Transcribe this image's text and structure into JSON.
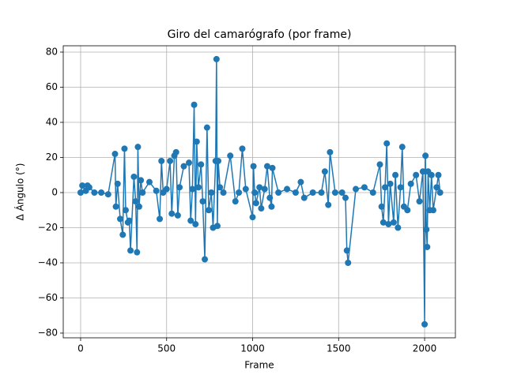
{
  "chart_data": {
    "type": "line",
    "title": "Giro del camarógrafo (por frame)",
    "x_label": "Frame",
    "y_label": "Δ Ángulo (°)",
    "color": "#1f77b4",
    "grid": true,
    "x": [
      0,
      10,
      30,
      40,
      50,
      80,
      120,
      160,
      200,
      205,
      215,
      230,
      245,
      255,
      262,
      275,
      283,
      290,
      310,
      320,
      328,
      333,
      340,
      350,
      360,
      400,
      440,
      460,
      470,
      480,
      500,
      520,
      530,
      545,
      555,
      565,
      575,
      600,
      630,
      640,
      650,
      660,
      668,
      675,
      685,
      700,
      710,
      722,
      735,
      745,
      760,
      770,
      785,
      790,
      795,
      800,
      810,
      830,
      870,
      900,
      920,
      940,
      960,
      1000,
      1005,
      1012,
      1020,
      1040,
      1050,
      1070,
      1085,
      1100,
      1110,
      1115,
      1150,
      1200,
      1250,
      1280,
      1300,
      1350,
      1400,
      1420,
      1440,
      1450,
      1480,
      1520,
      1540,
      1548,
      1555,
      1600,
      1650,
      1700,
      1740,
      1750,
      1760,
      1770,
      1780,
      1790,
      1800,
      1820,
      1830,
      1845,
      1860,
      1870,
      1880,
      1900,
      1920,
      1950,
      1970,
      1990,
      2000,
      2005,
      2010,
      2015,
      2020,
      2030,
      2040,
      2050,
      2070,
      2080,
      2090
    ],
    "values": [
      0,
      4,
      1,
      4,
      3,
      0,
      0,
      -1,
      22,
      -8,
      5,
      -15,
      -24,
      25,
      -10,
      -17,
      -16,
      -33,
      9,
      -5,
      -34,
      26,
      -8,
      7,
      0,
      6,
      1,
      -15,
      18,
      0,
      2,
      18,
      -12,
      21,
      23,
      -13,
      3,
      15,
      17,
      -16,
      2,
      50,
      -18,
      29,
      3,
      16,
      -5,
      -38,
      37,
      -10,
      0,
      -20,
      18,
      76,
      -19,
      18,
      3,
      0,
      21,
      -5,
      0,
      25,
      2,
      -14,
      15,
      0,
      -6,
      3,
      -9,
      2,
      15,
      -3,
      -8,
      14,
      0,
      2,
      0,
      6,
      -3,
      0,
      0,
      12,
      -7,
      23,
      0,
      0,
      -3,
      -33,
      -40,
      2,
      3,
      0,
      16,
      -8,
      -17,
      3,
      28,
      -18,
      5,
      -17,
      10,
      -20,
      3,
      26,
      -8,
      -10,
      5,
      10,
      -5,
      12,
      -75,
      21,
      -21,
      -31,
      12,
      -10,
      10,
      -10,
      3,
      10,
      0
    ],
    "xlim": [
      -101,
      2179
    ],
    "ylim": [
      -82.7,
      83.6
    ],
    "xticks": [
      0,
      500,
      1000,
      1500,
      2000
    ],
    "yticks": [
      {
        "value": -80,
        "label": "−80"
      },
      {
        "value": -60,
        "label": "−60"
      },
      {
        "value": -40,
        "label": "−40"
      },
      {
        "value": -20,
        "label": "−20"
      },
      0,
      20,
      40,
      60,
      80
    ]
  }
}
